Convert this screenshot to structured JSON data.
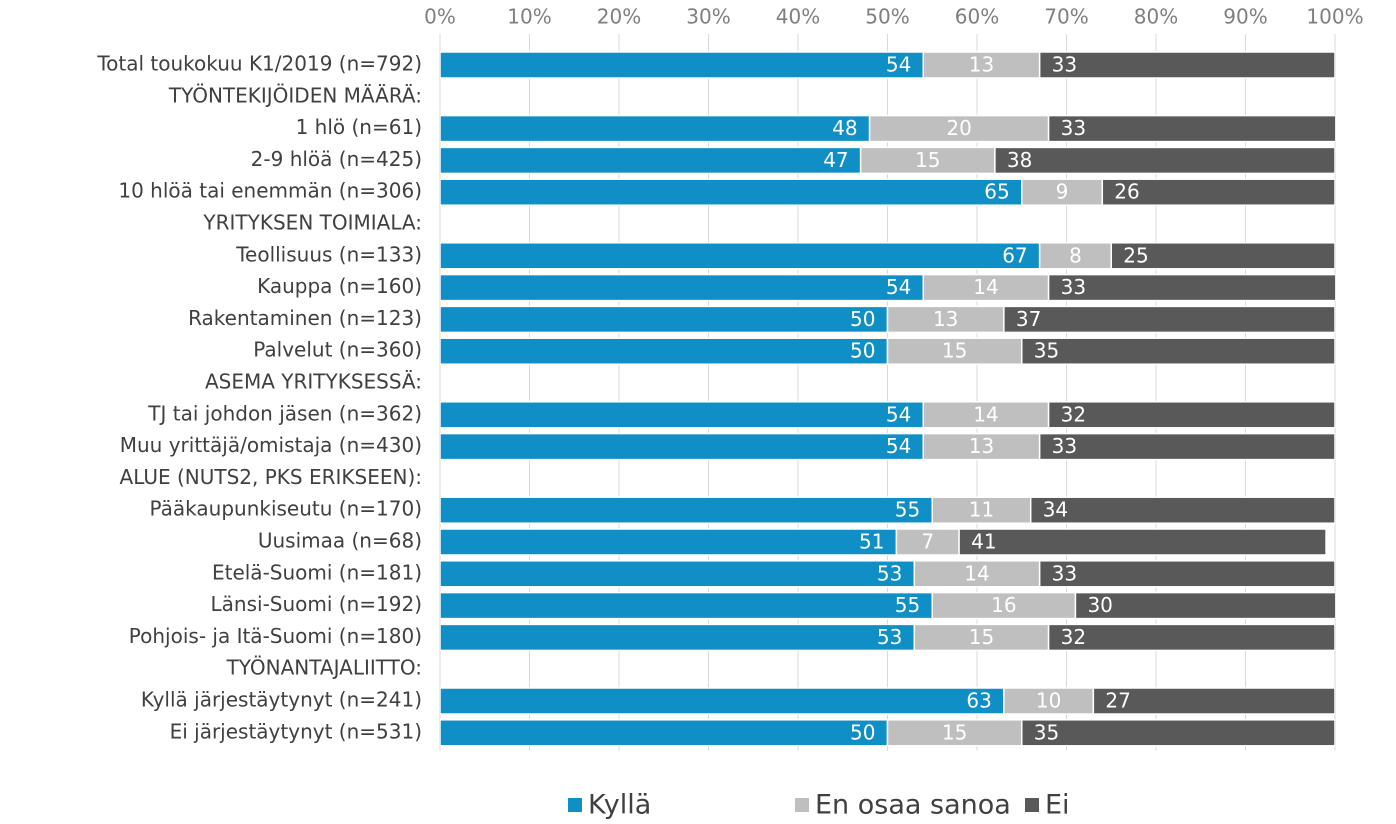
{
  "chart_data": {
    "type": "stacked-bar-horizontal",
    "categories": [
      "Total toukokuu K1/2019 (n=792)",
      "TYÖNTEKIJÖIDEN MÄÄRÄ:",
      "1 hlö (n=61)",
      "2-9 hlöä (n=425)",
      "10 hlöä tai enemmän (n=306)",
      "YRITYKSEN TOIMIALA:",
      "Teollisuus (n=133)",
      "Kauppa (n=160)",
      "Rakentaminen (n=123)",
      "Palvelut (n=360)",
      "ASEMA YRITYKSESSÄ:",
      "TJ tai johdon jäsen (n=362)",
      "Muu yrittäjä/omistaja (n=430)",
      "ALUE (NUTS2, PKS ERIKSEEN):",
      "Pääkaupunkiseutu (n=170)",
      "Uusimaa (n=68)",
      "Etelä-Suomi (n=181)",
      "Länsi-Suomi (n=192)",
      "Pohjois- ja Itä-Suomi (n=180)",
      "TYÖNANTAJALIITTO:",
      "Kyllä järjestäytynyt (n=241)",
      "Ei järjestäytynyt (n=531)"
    ],
    "series": [
      {
        "name": "Kyllä",
        "color": "#0f8fc6",
        "values": [
          54,
          null,
          48,
          47,
          65,
          null,
          67,
          54,
          50,
          50,
          null,
          54,
          54,
          null,
          55,
          51,
          53,
          55,
          53,
          null,
          63,
          50
        ]
      },
      {
        "name": "En osaa sanoa",
        "color": "#bfbfbf",
        "values": [
          13,
          null,
          20,
          15,
          9,
          null,
          8,
          14,
          13,
          15,
          null,
          14,
          13,
          null,
          11,
          7,
          14,
          16,
          15,
          null,
          10,
          15
        ]
      },
      {
        "name": "Ei",
        "color": "#595959",
        "values": [
          33,
          null,
          33,
          38,
          26,
          null,
          25,
          33,
          37,
          35,
          null,
          32,
          33,
          null,
          34,
          41,
          33,
          30,
          32,
          null,
          27,
          35
        ]
      }
    ],
    "xlim": [
      0,
      100
    ],
    "xticks": [
      {
        "value": 0,
        "label": "0%"
      },
      {
        "value": 10,
        "label": "10%"
      },
      {
        "value": 20,
        "label": "20%"
      },
      {
        "value": 30,
        "label": "30%"
      },
      {
        "value": 40,
        "label": "40%"
      },
      {
        "value": 50,
        "label": "50%"
      },
      {
        "value": 60,
        "label": "60%"
      },
      {
        "value": 70,
        "label": "70%"
      },
      {
        "value": 80,
        "label": "80%"
      },
      {
        "value": 90,
        "label": "90%"
      },
      {
        "value": 100,
        "label": "100%"
      }
    ],
    "grid": true,
    "legend": "bottom"
  }
}
